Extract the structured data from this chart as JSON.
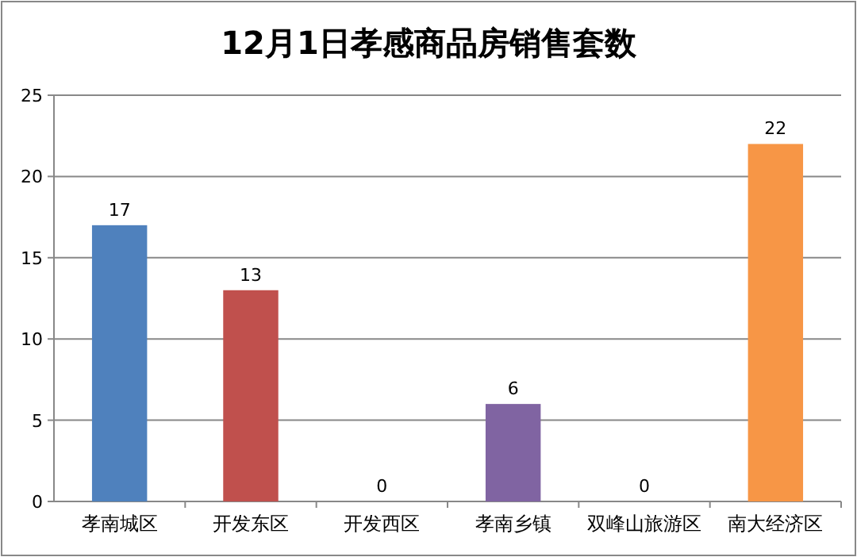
{
  "chart_data": {
    "type": "bar",
    "title": "12月1日孝感商品房销售套数",
    "categories": [
      "孝南城区",
      "开发东区",
      "开发西区",
      "孝南乡镇",
      "双峰山旅游区",
      "南大经济区"
    ],
    "values": [
      17,
      13,
      0,
      6,
      0,
      22
    ],
    "colors": [
      "#4f81bd",
      "#c0504d",
      "#9bbb59",
      "#8064a2",
      "#4bacc6",
      "#f79646"
    ],
    "ylim": [
      0,
      25
    ],
    "yticks": [
      0,
      5,
      10,
      15,
      20,
      25
    ],
    "grid": "y",
    "data_labels": true
  }
}
